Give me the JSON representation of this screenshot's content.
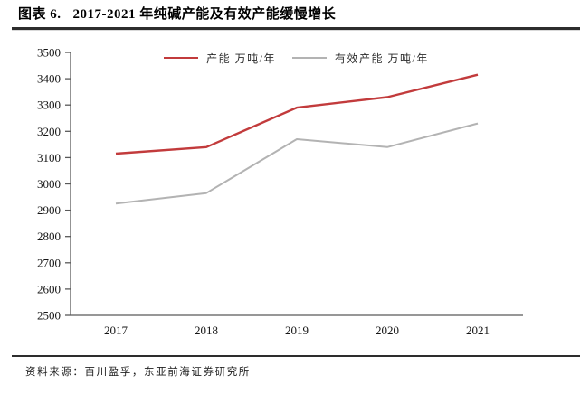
{
  "header": {
    "figure_label": "图表 6.",
    "title": "2017-2021 年纯碱产能及有效产能缓慢增长"
  },
  "legend": [
    {
      "label": "产能 万吨/年",
      "color": "#c23b3c"
    },
    {
      "label": "有效产能 万吨/年",
      "color": "#b3b3b3"
    }
  ],
  "source_note": "资料来源：百川盈孚，东亚前海证券研究所",
  "colors": {
    "accent_red": "#c23b3c",
    "line_gray": "#b3b3b3",
    "axis": "#595959",
    "rule": "#2d2d2d"
  },
  "chart_data": {
    "type": "line",
    "title": "2017-2021 年纯碱产能及有效产能缓慢增长",
    "categories": [
      "2017",
      "2018",
      "2019",
      "2020",
      "2021"
    ],
    "series": [
      {
        "name": "产能 万吨/年",
        "values": [
          3115,
          3140,
          3290,
          3330,
          3415
        ],
        "color": "#c23b3c",
        "width": 2.4
      },
      {
        "name": "有效产能 万吨/年",
        "values": [
          2925,
          2965,
          3170,
          3140,
          3230
        ],
        "color": "#b3b3b3",
        "width": 2
      }
    ],
    "xlabel": "",
    "ylabel": "",
    "ylim": [
      2500,
      3500
    ],
    "ytick_step": 100,
    "xticks": [
      "2017",
      "2018",
      "2019",
      "2020",
      "2021"
    ],
    "grid": false,
    "legend_position": "top-center"
  }
}
